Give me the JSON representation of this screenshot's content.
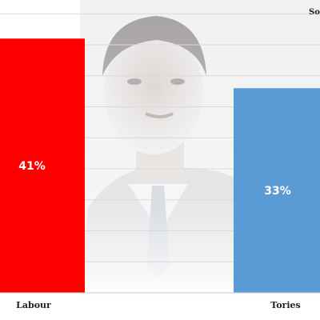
{
  "source_label": "So",
  "colors": {
    "labour": "#ff0000",
    "tories": "#5b9bd5",
    "grid": "#dadada",
    "photo_wash": "#e9e9ea"
  },
  "chart_data": {
    "type": "bar",
    "categories": [
      "Labour",
      "Tories"
    ],
    "values": [
      41,
      33
    ],
    "data_labels": [
      "41%",
      "33%"
    ],
    "ylim": [
      0,
      45
    ],
    "grid": true,
    "background": "faded photo of a man in a suit and tie behind the bars"
  }
}
